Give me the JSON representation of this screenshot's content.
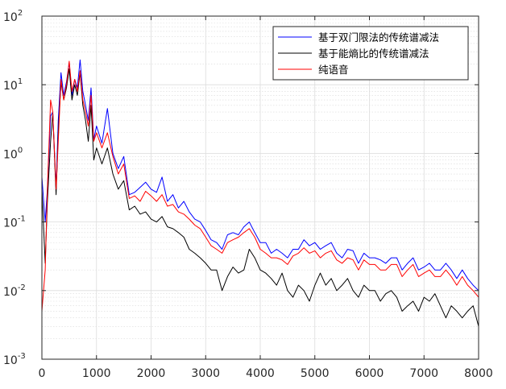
{
  "chart_data": {
    "type": "line",
    "title": "",
    "xlabel": "",
    "ylabel": "",
    "xlim": [
      0,
      8000
    ],
    "ylim": [
      0.001,
      100
    ],
    "yscale": "log",
    "grid": true,
    "minor_grid": true,
    "legend_position": "top-right",
    "x_ticks": [
      0,
      1000,
      2000,
      3000,
      4000,
      5000,
      6000,
      7000,
      8000
    ],
    "x_tick_labels": [
      "0",
      "1000",
      "2000",
      "3000",
      "4000",
      "5000",
      "6000",
      "7000",
      "8000"
    ],
    "y_ticks": [
      0.001,
      0.01,
      0.1,
      1,
      10,
      100
    ],
    "y_tick_labels": [
      {
        "base": "10",
        "exp": "-3"
      },
      {
        "base": "10",
        "exp": "-2"
      },
      {
        "base": "10",
        "exp": "-1"
      },
      {
        "base": "10",
        "exp": "0"
      },
      {
        "base": "10",
        "exp": "1"
      },
      {
        "base": "10",
        "exp": "2"
      }
    ],
    "series": [
      {
        "name": "基于双门限法的传统谱减法",
        "color": "#0000ff",
        "x": [
          0,
          60,
          100,
          160,
          200,
          260,
          300,
          350,
          400,
          450,
          500,
          550,
          600,
          650,
          700,
          750,
          800,
          850,
          900,
          950,
          1000,
          1100,
          1200,
          1300,
          1400,
          1500,
          1600,
          1700,
          1800,
          1900,
          2000,
          2100,
          2200,
          2300,
          2400,
          2500,
          2600,
          2700,
          2800,
          2900,
          3000,
          3100,
          3200,
          3300,
          3400,
          3500,
          3600,
          3700,
          3800,
          3900,
          4000,
          4100,
          4200,
          4300,
          4400,
          4500,
          4600,
          4700,
          4800,
          4900,
          5000,
          5100,
          5200,
          5300,
          5400,
          5500,
          5600,
          5700,
          5800,
          5900,
          6000,
          6100,
          6200,
          6300,
          6400,
          6500,
          6600,
          6700,
          6800,
          6900,
          7000,
          7100,
          7200,
          7300,
          7400,
          7500,
          7600,
          7700,
          7800,
          7900,
          8000
        ],
        "values": [
          0.45,
          0.1,
          0.3,
          3.5,
          4.0,
          0.3,
          3.0,
          15.0,
          7.0,
          11.0,
          21.0,
          7.0,
          12.0,
          9.0,
          23.0,
          8.0,
          5.0,
          3.0,
          9.0,
          1.6,
          2.5,
          1.4,
          4.5,
          1.0,
          0.6,
          0.9,
          0.25,
          0.27,
          0.32,
          0.38,
          0.3,
          0.27,
          0.45,
          0.2,
          0.25,
          0.16,
          0.2,
          0.14,
          0.11,
          0.1,
          0.075,
          0.055,
          0.05,
          0.04,
          0.065,
          0.07,
          0.065,
          0.085,
          0.1,
          0.07,
          0.05,
          0.05,
          0.035,
          0.04,
          0.035,
          0.03,
          0.04,
          0.04,
          0.055,
          0.045,
          0.05,
          0.04,
          0.045,
          0.05,
          0.035,
          0.03,
          0.04,
          0.038,
          0.025,
          0.035,
          0.03,
          0.03,
          0.028,
          0.025,
          0.03,
          0.03,
          0.02,
          0.025,
          0.03,
          0.02,
          0.022,
          0.025,
          0.02,
          0.02,
          0.025,
          0.02,
          0.015,
          0.02,
          0.015,
          0.012,
          0.01
        ]
      },
      {
        "name": "基于能熵比的传统谱减法",
        "color": "#000000",
        "x": [
          0,
          60,
          100,
          160,
          200,
          260,
          300,
          350,
          400,
          450,
          500,
          550,
          600,
          650,
          700,
          750,
          800,
          850,
          900,
          950,
          1000,
          1100,
          1200,
          1300,
          1400,
          1500,
          1600,
          1700,
          1800,
          1900,
          2000,
          2100,
          2200,
          2300,
          2400,
          2500,
          2600,
          2700,
          2800,
          2900,
          3000,
          3100,
          3200,
          3300,
          3400,
          3500,
          3600,
          3700,
          3800,
          3900,
          4000,
          4100,
          4200,
          4300,
          4400,
          4500,
          4600,
          4700,
          4800,
          4900,
          5000,
          5100,
          5200,
          5300,
          5400,
          5500,
          5600,
          5700,
          5800,
          5900,
          6000,
          6100,
          6200,
          6300,
          6400,
          6500,
          6600,
          6700,
          6800,
          6900,
          7000,
          7100,
          7200,
          7300,
          7400,
          7500,
          7600,
          7700,
          7800,
          7900,
          8000
        ],
        "values": [
          0.3,
          0.025,
          0.2,
          1.5,
          3.8,
          0.25,
          2.0,
          11.0,
          6.0,
          9.0,
          17.0,
          6.0,
          10.0,
          7.0,
          15.0,
          5.0,
          3.0,
          1.5,
          5.0,
          0.8,
          1.2,
          0.7,
          1.2,
          0.5,
          0.3,
          0.4,
          0.15,
          0.17,
          0.13,
          0.14,
          0.11,
          0.1,
          0.12,
          0.085,
          0.08,
          0.07,
          0.06,
          0.04,
          0.035,
          0.03,
          0.025,
          0.02,
          0.02,
          0.01,
          0.016,
          0.022,
          0.018,
          0.02,
          0.04,
          0.03,
          0.02,
          0.018,
          0.015,
          0.012,
          0.018,
          0.01,
          0.008,
          0.012,
          0.01,
          0.007,
          0.012,
          0.018,
          0.012,
          0.015,
          0.01,
          0.012,
          0.015,
          0.01,
          0.008,
          0.012,
          0.01,
          0.01,
          0.007,
          0.009,
          0.01,
          0.008,
          0.005,
          0.006,
          0.007,
          0.005,
          0.008,
          0.007,
          0.009,
          0.006,
          0.004,
          0.006,
          0.005,
          0.004,
          0.005,
          0.006,
          0.003
        ]
      },
      {
        "name": "纯语音",
        "color": "#ff0000",
        "x": [
          0,
          60,
          100,
          160,
          200,
          260,
          300,
          350,
          400,
          450,
          500,
          550,
          600,
          650,
          700,
          750,
          800,
          850,
          900,
          950,
          1000,
          1100,
          1200,
          1300,
          1400,
          1500,
          1600,
          1700,
          1800,
          1900,
          2000,
          2100,
          2200,
          2300,
          2400,
          2500,
          2600,
          2700,
          2800,
          2900,
          3000,
          3100,
          3200,
          3300,
          3400,
          3500,
          3600,
          3700,
          3800,
          3900,
          4000,
          4100,
          4200,
          4300,
          4400,
          4500,
          4600,
          4700,
          4800,
          4900,
          5000,
          5100,
          5200,
          5300,
          5400,
          5500,
          5600,
          5700,
          5800,
          5900,
          6000,
          6100,
          6200,
          6300,
          6400,
          6500,
          6600,
          6700,
          6800,
          6900,
          7000,
          7100,
          7200,
          7300,
          7400,
          7500,
          7600,
          7700,
          7800,
          7900,
          8000
        ],
        "values": [
          0.005,
          0.02,
          0.3,
          6.0,
          4.0,
          0.3,
          1.5,
          12.0,
          6.0,
          10.0,
          22.0,
          8.0,
          12.0,
          8.0,
          16.0,
          6.0,
          4.0,
          2.5,
          7.0,
          1.5,
          2.0,
          1.2,
          2.0,
          0.9,
          0.5,
          0.7,
          0.22,
          0.24,
          0.2,
          0.28,
          0.24,
          0.2,
          0.25,
          0.17,
          0.18,
          0.14,
          0.13,
          0.11,
          0.09,
          0.08,
          0.06,
          0.045,
          0.04,
          0.035,
          0.05,
          0.055,
          0.06,
          0.07,
          0.08,
          0.06,
          0.04,
          0.035,
          0.03,
          0.03,
          0.028,
          0.024,
          0.032,
          0.035,
          0.042,
          0.035,
          0.038,
          0.03,
          0.035,
          0.038,
          0.028,
          0.025,
          0.03,
          0.028,
          0.02,
          0.028,
          0.024,
          0.024,
          0.02,
          0.02,
          0.024,
          0.024,
          0.016,
          0.02,
          0.024,
          0.016,
          0.018,
          0.02,
          0.016,
          0.016,
          0.02,
          0.016,
          0.012,
          0.016,
          0.012,
          0.01,
          0.008
        ]
      }
    ]
  }
}
